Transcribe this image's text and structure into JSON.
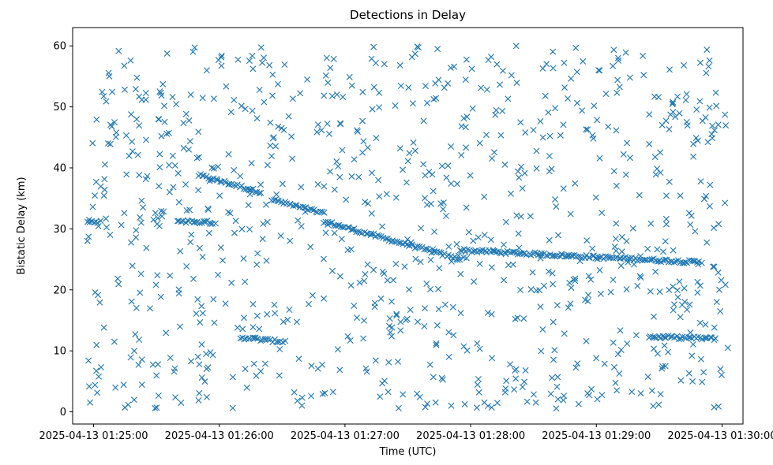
{
  "chart_data": {
    "type": "scatter",
    "title": "Detections in Delay",
    "xlabel": "Time (UTC)",
    "ylabel": "Bistatic Delay (km)",
    "x_ticks": [
      "2025-04-13 01:25:00",
      "2025-04-13 01:26:00",
      "2025-04-13 01:27:00",
      "2025-04-13 01:28:00",
      "2025-04-13 01:29:00",
      "2025-04-13 01:30:00"
    ],
    "x_tick_seconds": [
      0,
      60,
      120,
      180,
      240,
      300
    ],
    "xlim_seconds": [
      -10,
      310
    ],
    "y_ticks": [
      0,
      10,
      20,
      30,
      40,
      50,
      60
    ],
    "ylim": [
      -2,
      63
    ],
    "marker": "x",
    "color": "#1f77b4",
    "grid": false,
    "tracks": [
      {
        "x": [
          [
            50,
            80
          ]
        ],
        "y": [
          38.8,
          36.0
        ]
      },
      {
        "x": [
          [
            85,
            110
          ]
        ],
        "y": [
          34.8,
          32.5
        ]
      },
      {
        "x": [
          [
            110,
            175
          ]
        ],
        "y": [
          31.2,
          25.0
        ]
      },
      {
        "x": [
          [
            175,
            290
          ]
        ],
        "y": [
          26.5,
          24.5
        ]
      },
      {
        "x": [
          [
            70,
            90
          ]
        ],
        "y": [
          12.2,
          11.5
        ]
      },
      {
        "x": [
          [
            265,
            297
          ]
        ],
        "y": [
          12.3,
          12.0
        ]
      },
      {
        "x": [
          [
            40,
            58
          ]
        ],
        "y": [
          31.3,
          31.0
        ]
      },
      {
        "x": [
          [
            -3,
            3
          ]
        ],
        "y": [
          31.2,
          31.2
        ]
      }
    ],
    "noise_points_approx": 900,
    "noise_x_range_seconds": [
      -3,
      303
    ],
    "noise_y_range": [
      0.5,
      60
    ]
  }
}
